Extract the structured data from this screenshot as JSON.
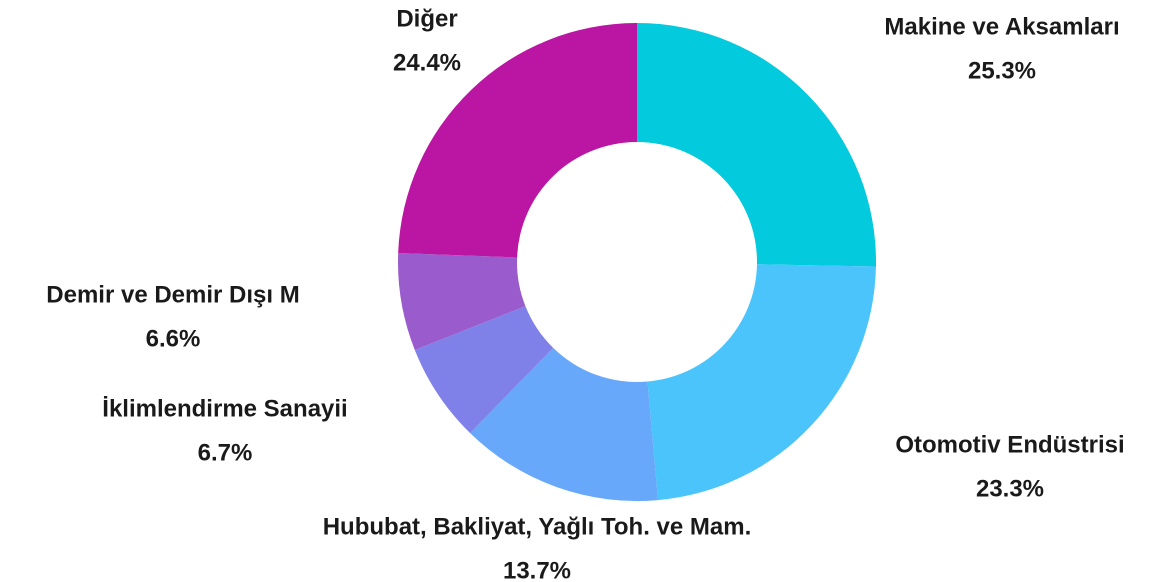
{
  "chart_data": {
    "type": "donut",
    "categories": [
      "Makine ve Aksamları",
      "Otomotiv Endüstrisi",
      "Hububat, Bakliyat, Yağlı Toh. ve Mam.",
      "İklimlendirme Sanayii",
      "Demir ve Demir Dışı M",
      "Diğer"
    ],
    "values": [
      25.3,
      23.3,
      13.7,
      6.7,
      6.6,
      24.4
    ],
    "value_labels": [
      "25.3%",
      "23.3%",
      "13.7%",
      "6.7%",
      "6.6%",
      "24.4%"
    ],
    "colors": [
      "#03cadd",
      "#4bc4fc",
      "#68a8fa",
      "#8081e8",
      "#9a5ccc",
      "#bb16a3"
    ]
  }
}
